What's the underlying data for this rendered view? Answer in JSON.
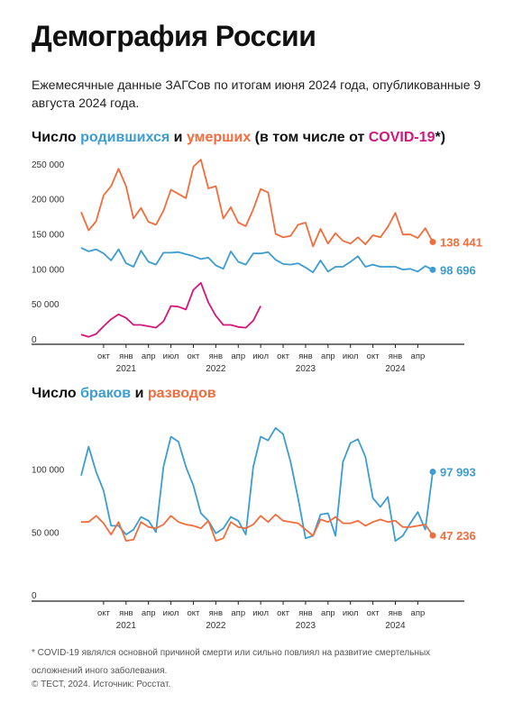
{
  "header": {
    "title": "Демография России",
    "subtitle": "Ежемесячные данные ЗАГСов по итогам июня 2024 года, опубликованные 9 августа 2024 года."
  },
  "chart1_title": {
    "part1": "Число ",
    "births": "родившихся",
    "part2": " и ",
    "deaths": "умерших",
    "part3": " (в том числе от ",
    "covid": "COVID-19",
    "part4": "*)"
  },
  "chart2_title": {
    "part1": "Число ",
    "marriages": "браков",
    "part2": " и ",
    "divorces": "разводов"
  },
  "footer": {
    "footnote": "*  COVID-19 являлся основной причиной смерти или сильно повлиял на развитие смертельных осложнений иного заболевания.",
    "credit": "© ТЕСТ, 2024. Источник: Росстат."
  },
  "colors": {
    "blue": "#3d9cd0",
    "orange": "#f26d3d",
    "magenta": "#d3177a"
  },
  "chart_data": [
    {
      "type": "line",
      "x": [
        "2020-07",
        "2020-08",
        "2020-09",
        "2020-10",
        "2020-11",
        "2020-12",
        "2021-01",
        "2021-02",
        "2021-03",
        "2021-04",
        "2021-05",
        "2021-06",
        "2021-07",
        "2021-08",
        "2021-09",
        "2021-10",
        "2021-11",
        "2021-12",
        "2022-01",
        "2022-02",
        "2022-03",
        "2022-04",
        "2022-05",
        "2022-06",
        "2022-07",
        "2022-08",
        "2022-09",
        "2022-10",
        "2022-11",
        "2022-12",
        "2023-01",
        "2023-02",
        "2023-03",
        "2023-04",
        "2023-05",
        "2023-06",
        "2023-07",
        "2023-08",
        "2023-09",
        "2023-10",
        "2023-11",
        "2023-12",
        "2024-01",
        "2024-02",
        "2024-03",
        "2024-04",
        "2024-05",
        "2024-06"
      ],
      "x_tick_labels": [
        "окт",
        "янв",
        "апр",
        "июл",
        "окт",
        "янв",
        "апр",
        "июл",
        "окт",
        "янв",
        "апр",
        "июл",
        "окт",
        "янв",
        "апр"
      ],
      "year_labels": [
        "2021",
        "2022",
        "2023",
        "2024"
      ],
      "y_tick_labels": [
        "250 000",
        "200 000",
        "150 000",
        "100 000",
        "50 000",
        "0"
      ],
      "ylim": [
        0,
        260000
      ],
      "series": [
        {
          "name": "родившихся",
          "color": "#3d9cd0",
          "values": [
            130000,
            125000,
            128000,
            122000,
            112000,
            128000,
            108000,
            103000,
            126000,
            110000,
            106000,
            123000,
            123000,
            124000,
            121000,
            118000,
            114000,
            116000,
            105000,
            100000,
            125000,
            110000,
            106000,
            122000,
            122000,
            124000,
            113000,
            107000,
            106000,
            108000,
            102000,
            95000,
            112000,
            96000,
            103000,
            103000,
            110000,
            118000,
            103000,
            106000,
            103000,
            103000,
            103000,
            99000,
            100000,
            96000,
            104000,
            98696
          ],
          "end_label": "98 696"
        },
        {
          "name": "умерших",
          "color": "#f26d3d",
          "values": [
            181000,
            155000,
            168000,
            205000,
            218000,
            243000,
            218000,
            172000,
            187000,
            167000,
            163000,
            183000,
            213000,
            207000,
            201000,
            246000,
            256000,
            215000,
            218000,
            172000,
            188000,
            166000,
            161000,
            185000,
            214000,
            209000,
            150000,
            145000,
            147000,
            163000,
            166000,
            132000,
            157000,
            136000,
            151000,
            140000,
            136000,
            145000,
            135000,
            148000,
            145000,
            160000,
            180000,
            149000,
            149000,
            144000,
            158000,
            138441
          ],
          "end_label": "138 441"
        },
        {
          "name": "COVID-19",
          "color": "#d3177a",
          "values": [
            6000,
            3000,
            7000,
            18000,
            28000,
            35000,
            30000,
            20000,
            20000,
            18000,
            16000,
            25000,
            47000,
            46000,
            42000,
            70000,
            80000,
            52000,
            33000,
            20000,
            20000,
            17000,
            16000,
            26000,
            47000,
            null,
            null,
            null,
            null,
            null,
            null,
            null,
            null,
            null,
            null,
            null,
            null,
            null,
            null,
            null,
            null,
            null,
            null,
            null,
            null,
            null,
            null,
            null
          ]
        }
      ]
    },
    {
      "type": "line",
      "x": [
        "2020-07",
        "2020-08",
        "2020-09",
        "2020-10",
        "2020-11",
        "2020-12",
        "2021-01",
        "2021-02",
        "2021-03",
        "2021-04",
        "2021-05",
        "2021-06",
        "2021-07",
        "2021-08",
        "2021-09",
        "2021-10",
        "2021-11",
        "2021-12",
        "2022-01",
        "2022-02",
        "2022-03",
        "2022-04",
        "2022-05",
        "2022-06",
        "2022-07",
        "2022-08",
        "2022-09",
        "2022-10",
        "2022-11",
        "2022-12",
        "2023-01",
        "2023-02",
        "2023-03",
        "2023-04",
        "2023-05",
        "2023-06",
        "2023-07",
        "2023-08",
        "2023-09",
        "2023-10",
        "2023-11",
        "2023-12",
        "2024-01",
        "2024-02",
        "2024-03",
        "2024-04",
        "2024-05",
        "2024-06"
      ],
      "x_tick_labels": [
        "окт",
        "янв",
        "апр",
        "июл",
        "окт",
        "янв",
        "апр",
        "июл",
        "окт",
        "янв",
        "апр",
        "июл",
        "окт",
        "янв",
        "апр"
      ],
      "year_labels": [
        "2021",
        "2022",
        "2023",
        "2024"
      ],
      "y_tick_labels": [
        "100 000",
        "50 000",
        "0"
      ],
      "ylim": [
        0,
        140000
      ],
      "series": [
        {
          "name": "браков",
          "color": "#3d9cd0",
          "values": [
            95000,
            118000,
            98000,
            83000,
            55000,
            55000,
            48000,
            52000,
            62000,
            59000,
            50000,
            102000,
            126000,
            122000,
            102000,
            87000,
            65000,
            59000,
            49000,
            53000,
            62000,
            59000,
            48000,
            102000,
            126000,
            123000,
            133000,
            128000,
            106000,
            77000,
            45000,
            47000,
            64000,
            65000,
            47000,
            106000,
            121000,
            124000,
            110000,
            77000,
            70000,
            78000,
            43000,
            47000,
            57000,
            66000,
            52000,
            97993
          ],
          "end_label": "97 993"
        },
        {
          "name": "разводов",
          "color": "#f26d3d",
          "values": [
            58000,
            58000,
            63000,
            57000,
            48000,
            58000,
            43000,
            44000,
            58000,
            54000,
            53000,
            56000,
            63000,
            58000,
            56000,
            55000,
            53000,
            59000,
            43000,
            45000,
            58000,
            54000,
            53000,
            56000,
            63000,
            58000,
            64000,
            59000,
            58000,
            57000,
            52000,
            47000,
            60000,
            58000,
            62000,
            57000,
            57000,
            59000,
            55000,
            58000,
            60000,
            58000,
            59000,
            54000,
            54000,
            55000,
            56000,
            47236
          ],
          "end_label": "47 236"
        }
      ]
    }
  ]
}
